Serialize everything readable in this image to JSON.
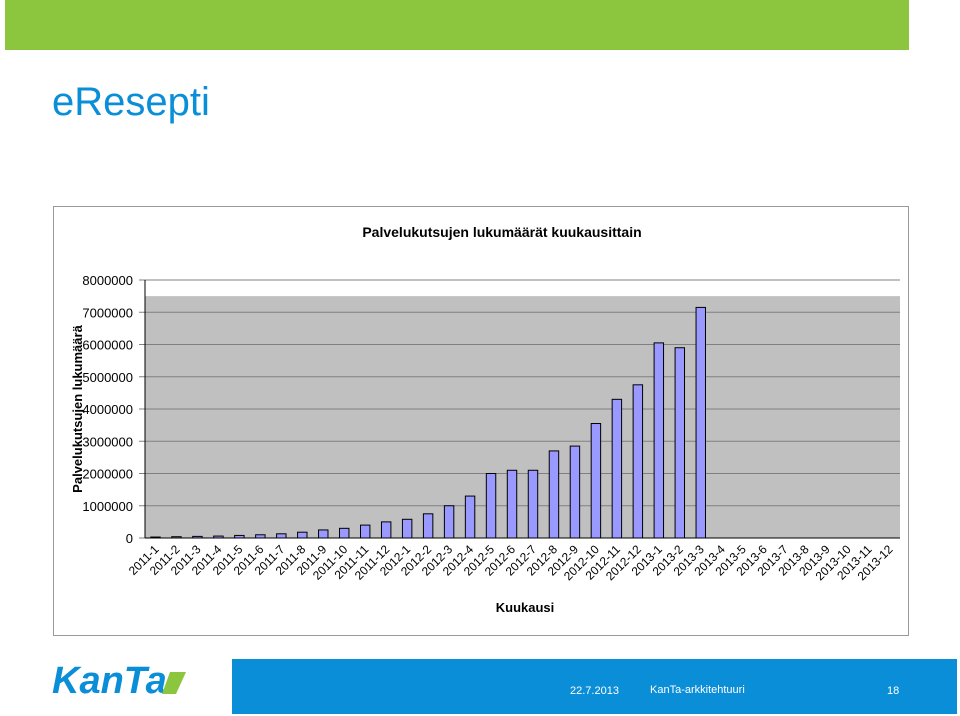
{
  "slide": {
    "title": "eResepti",
    "footer": {
      "date": "22.7.2013",
      "center": "KanTa-arkkitehtuuri",
      "page": "18"
    },
    "logo_text": "KanTa",
    "colors": {
      "top_bar": "#8cc63f",
      "title": "#0a8ed8",
      "footer_bar": "#0a8ed8",
      "bar_fill": "#9999ff",
      "plot_bg": "#c0c0c0"
    }
  },
  "chart_data": {
    "type": "bar",
    "title": "Palvelukutsujen lukumäärät kuukausittain",
    "xlabel": "Kuukausi",
    "ylabel": "Palvelukutsujen lukumäärä",
    "ylim": [
      0,
      8000000
    ],
    "yticks": [
      0,
      1000000,
      2000000,
      3000000,
      4000000,
      5000000,
      6000000,
      7000000,
      8000000
    ],
    "ytick_labels": [
      "0",
      "1000000",
      "2000000",
      "3000000",
      "4000000",
      "5000000",
      "6000000",
      "7000000",
      "8000000"
    ],
    "grid": true,
    "legend": "none",
    "categories": [
      "2011-1",
      "2011-2",
      "2011-3",
      "2011-4",
      "2011-5",
      "2011-6",
      "2011-7",
      "2011-8",
      "2011-9",
      "2011-10",
      "2011-11",
      "2011-12",
      "2012-1",
      "2012-2",
      "2012-3",
      "2012-4",
      "2012-5",
      "2012-6",
      "2012-7",
      "2012-8",
      "2012-9",
      "2012-10",
      "2012-11",
      "2012-12",
      "2013-1",
      "2013-2",
      "2013-3",
      "2013-4",
      "2013-5",
      "2013-6",
      "2013-7",
      "2013-8",
      "2013-9",
      "2013-10",
      "2013-11",
      "2013-12"
    ],
    "values": [
      30000,
      40000,
      50000,
      60000,
      80000,
      100000,
      130000,
      180000,
      250000,
      300000,
      400000,
      500000,
      580000,
      750000,
      1000000,
      1300000,
      2000000,
      2100000,
      2100000,
      2700000,
      2850000,
      3550000,
      4300000,
      4750000,
      6050000,
      5900000,
      7150000,
      null,
      null,
      null,
      null,
      null,
      null,
      null,
      null,
      null
    ]
  }
}
